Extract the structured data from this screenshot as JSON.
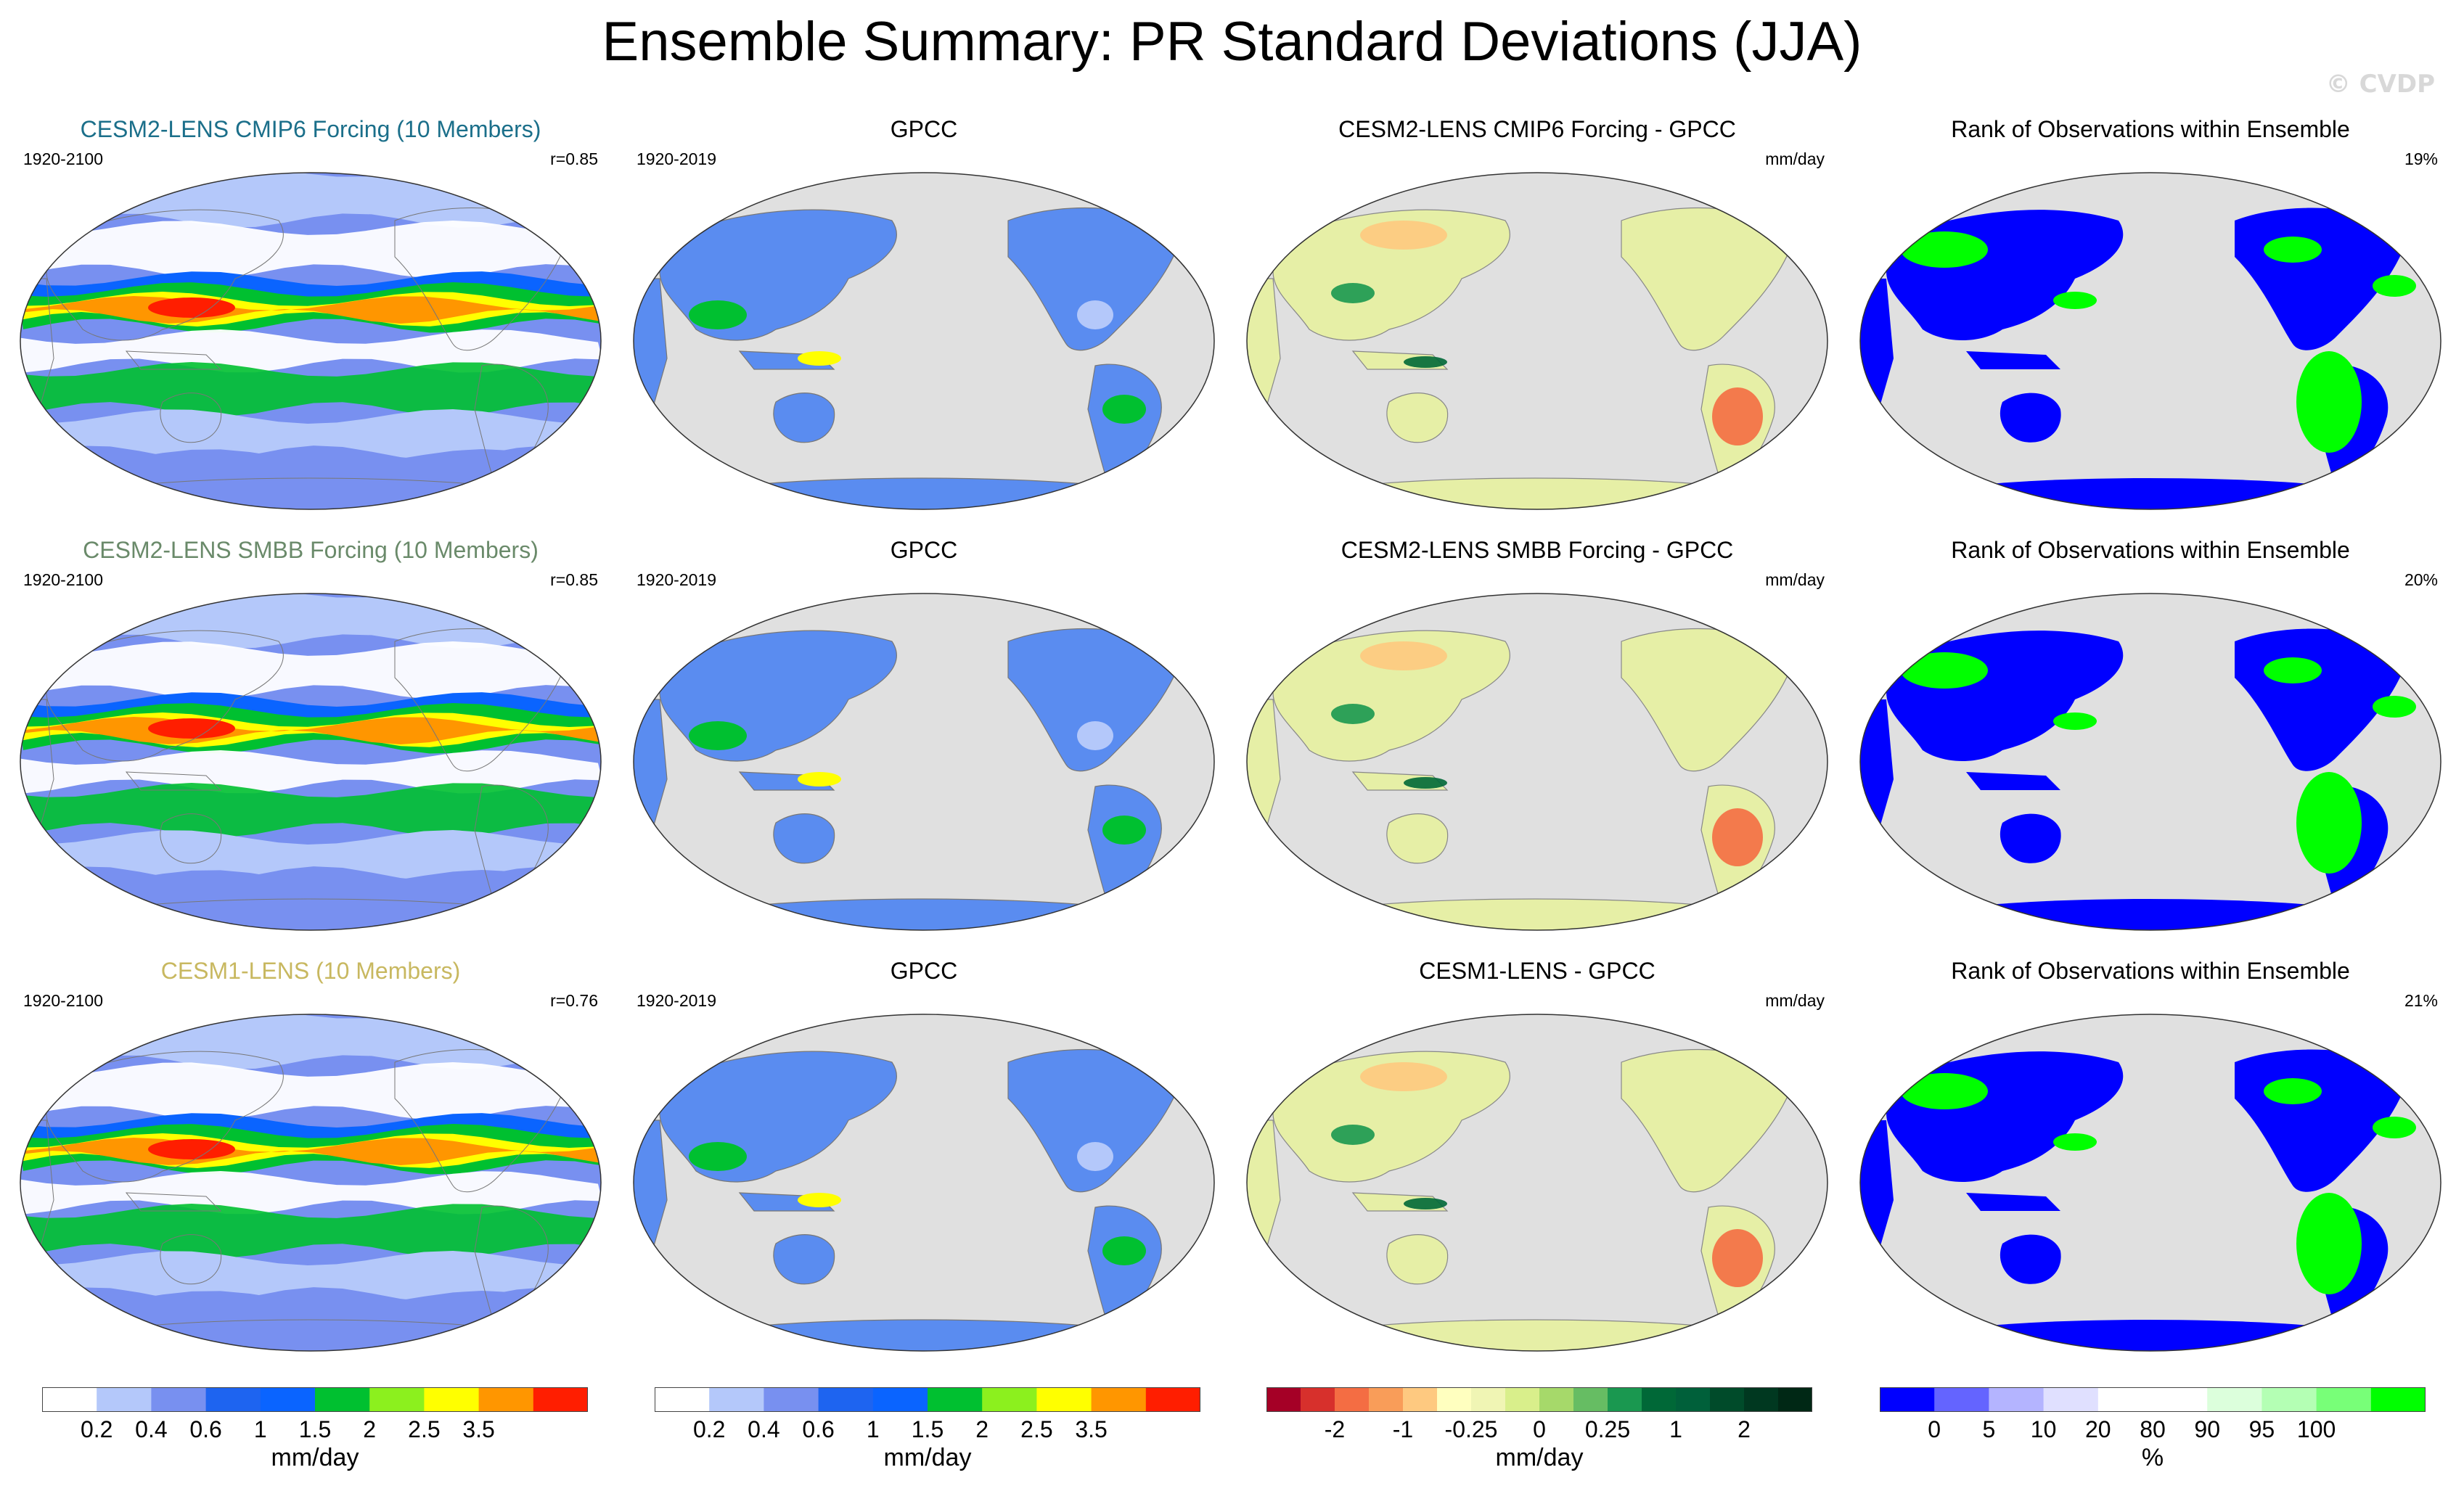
{
  "title": "Ensemble Summary: PR Standard Deviations (JJA)",
  "watermark": "© CVDP",
  "rows": [
    {
      "model": {
        "title": "CESM2-LENS CMIP6 Forcing (10 Members)",
        "title_color": "#1b6f8a",
        "period": "1920-2100",
        "r": "r=0.85"
      },
      "obs": {
        "title": "GPCC",
        "period": "1920-2019"
      },
      "diff": {
        "title": "CESM2-LENS CMIP6 Forcing - GPCC",
        "unit": "mm/day"
      },
      "rank": {
        "title": "Rank of Observations within Ensemble",
        "percent": "19%"
      }
    },
    {
      "model": {
        "title": "CESM2-LENS SMBB Forcing (10 Members)",
        "title_color": "#6a8a6a",
        "period": "1920-2100",
        "r": "r=0.85"
      },
      "obs": {
        "title": "GPCC",
        "period": "1920-2019"
      },
      "diff": {
        "title": "CESM2-LENS SMBB Forcing - GPCC",
        "unit": "mm/day"
      },
      "rank": {
        "title": "Rank of Observations within Ensemble",
        "percent": "20%"
      }
    },
    {
      "model": {
        "title": "CESM1-LENS (10 Members)",
        "title_color": "#d8c870",
        "period": "1920-2100",
        "r": "r=0.76"
      },
      "obs": {
        "title": "GPCC",
        "period": "1920-2019"
      },
      "diff": {
        "title": "CESM1-LENS - GPCC",
        "unit": "mm/day"
      },
      "rank": {
        "title": "Rank of Observations within Ensemble",
        "percent": "21%"
      }
    }
  ],
  "colorbars": {
    "stddev": {
      "colors": [
        "#ffffff",
        "#b4c8fa",
        "#7890f0",
        "#1e64f0",
        "#0a64ff",
        "#00c030",
        "#8cf01e",
        "#ffff00",
        "#ff9600",
        "#ff1e00"
      ],
      "ticks": [
        "0.2",
        "0.4",
        "0.6",
        "1",
        "1.5",
        "2",
        "2.5",
        "3.5"
      ],
      "unit": "mm/day"
    },
    "diff": {
      "colors": [
        "#a50026",
        "#d7302c",
        "#f46d43",
        "#f99d59",
        "#fec980",
        "#ffffbf",
        "#f0f5b4",
        "#d9ef8b",
        "#a6d96a",
        "#66bd63",
        "#1a9850",
        "#006837",
        "#00603a",
        "#004b2a",
        "#003820",
        "#002815"
      ],
      "ticks": [
        "-2",
        "-1",
        "-0.25",
        "0",
        "0.25",
        "1",
        "2"
      ],
      "unit": "mm/day"
    },
    "rank": {
      "colors": [
        "#0000ff",
        "#6464ff",
        "#b4b4ff",
        "#e0e0ff",
        "#ffffff",
        "#ffffff",
        "#dcffdc",
        "#b4ffb4",
        "#78ff78",
        "#00ff00"
      ],
      "ticks": [
        "0",
        "5",
        "10",
        "20",
        "80",
        "90",
        "95",
        "100"
      ],
      "unit": "%"
    }
  }
}
